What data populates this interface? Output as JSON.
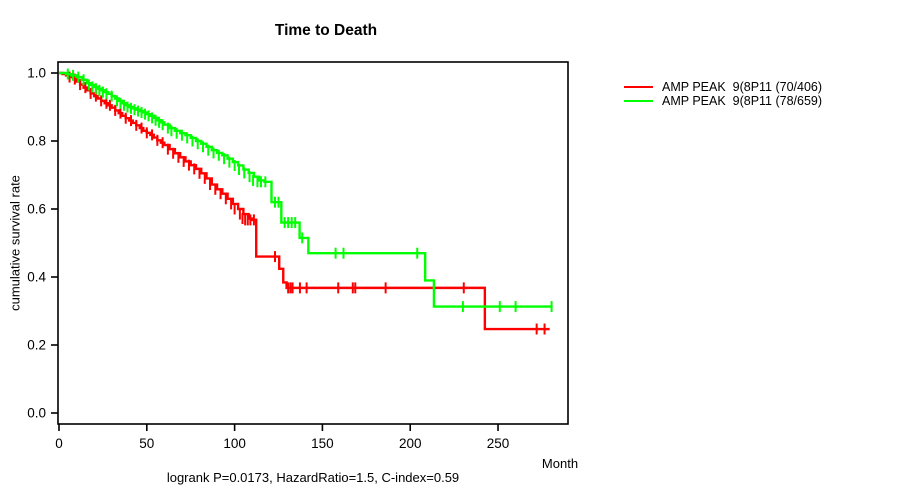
{
  "figure": {
    "title": "Time to Death",
    "x_axis_title": "Month",
    "y_axis_title": "cumulative survival rate",
    "annotation": "logrank P=0.0173, HazardRatio=1.5, C-index=0.59"
  },
  "chart_data": {
    "type": "line",
    "subtype": "kaplan-meier-step-curves",
    "title": "Time to Death",
    "xlabel": "Month",
    "ylabel": "cumulative survival rate",
    "xlim": [
      0,
      290
    ],
    "ylim": [
      0,
      1.0
    ],
    "xticks": [
      0,
      50,
      100,
      150,
      200,
      250
    ],
    "yticks": [
      0.0,
      0.2,
      0.4,
      0.6,
      0.8,
      1.0
    ],
    "grid": false,
    "legend_position": "outside-right",
    "annotation": "logrank P=0.0173, HazardRatio=1.5, C-index=0.59",
    "series": [
      {
        "name": "AMP PEAK  9(8P11 (70/406)",
        "events_over_n": "70/406",
        "color": "#ff0000",
        "steps": [
          [
            0,
            1.0
          ],
          [
            2,
            0.997
          ],
          [
            4,
            0.993
          ],
          [
            6,
            0.988
          ],
          [
            8,
            0.982
          ],
          [
            10,
            0.975
          ],
          [
            12,
            0.966
          ],
          [
            14,
            0.957
          ],
          [
            16,
            0.949
          ],
          [
            18,
            0.94
          ],
          [
            20,
            0.932
          ],
          [
            22,
            0.925
          ],
          [
            24,
            0.918
          ],
          [
            26,
            0.911
          ],
          [
            28,
            0.905
          ],
          [
            30,
            0.898
          ],
          [
            32,
            0.89
          ],
          [
            34,
            0.882
          ],
          [
            36,
            0.874
          ],
          [
            38,
            0.867
          ],
          [
            40,
            0.86
          ],
          [
            42,
            0.853
          ],
          [
            44,
            0.846
          ],
          [
            46,
            0.838
          ],
          [
            48,
            0.83
          ],
          [
            50,
            0.824
          ],
          [
            52,
            0.818
          ],
          [
            54,
            0.81
          ],
          [
            56,
            0.802
          ],
          [
            58,
            0.795
          ],
          [
            60,
            0.788
          ],
          [
            63,
            0.776
          ],
          [
            66,
            0.764
          ],
          [
            69,
            0.752
          ],
          [
            72,
            0.74
          ],
          [
            75,
            0.729
          ],
          [
            78,
            0.718
          ],
          [
            81,
            0.705
          ],
          [
            84,
            0.69
          ],
          [
            87,
            0.672
          ],
          [
            90,
            0.658
          ],
          [
            93,
            0.645
          ],
          [
            96,
            0.63
          ],
          [
            99,
            0.615
          ],
          [
            102,
            0.6
          ],
          [
            105,
            0.585
          ],
          [
            108,
            0.572
          ],
          [
            110,
            0.568
          ],
          [
            112.3,
            0.46
          ],
          [
            125.4,
            0.424
          ],
          [
            127.7,
            0.384
          ],
          [
            129.6,
            0.368
          ],
          [
            242.5,
            0.247
          ],
          [
            279.4,
            0.247
          ]
        ],
        "censors": [
          [
            6,
            0.988
          ],
          [
            9,
            0.982
          ],
          [
            12,
            0.966
          ],
          [
            15,
            0.957
          ],
          [
            18,
            0.94
          ],
          [
            21,
            0.932
          ],
          [
            24,
            0.918
          ],
          [
            27,
            0.911
          ],
          [
            29,
            0.905
          ],
          [
            32,
            0.89
          ],
          [
            35,
            0.882
          ],
          [
            38,
            0.867
          ],
          [
            41,
            0.86
          ],
          [
            44,
            0.846
          ],
          [
            47,
            0.838
          ],
          [
            50,
            0.824
          ],
          [
            53,
            0.818
          ],
          [
            56,
            0.802
          ],
          [
            59,
            0.795
          ],
          [
            62,
            0.776
          ],
          [
            65,
            0.764
          ],
          [
            68,
            0.752
          ],
          [
            71,
            0.74
          ],
          [
            74,
            0.729
          ],
          [
            77,
            0.718
          ],
          [
            80,
            0.705
          ],
          [
            83,
            0.69
          ],
          [
            86,
            0.672
          ],
          [
            89,
            0.658
          ],
          [
            92,
            0.645
          ],
          [
            95,
            0.63
          ],
          [
            98,
            0.615
          ],
          [
            100,
            0.6
          ],
          [
            103,
            0.585
          ],
          [
            104.5,
            0.572
          ],
          [
            106,
            0.568
          ],
          [
            107.5,
            0.568
          ],
          [
            109,
            0.568
          ],
          [
            111,
            0.568
          ],
          [
            123,
            0.46
          ],
          [
            130.5,
            0.368
          ],
          [
            131.8,
            0.368
          ],
          [
            133,
            0.368
          ],
          [
            137.2,
            0.368
          ],
          [
            141,
            0.368
          ],
          [
            159,
            0.368
          ],
          [
            167.3,
            0.368
          ],
          [
            168.7,
            0.368
          ],
          [
            186,
            0.368
          ],
          [
            230.5,
            0.368
          ],
          [
            272,
            0.247
          ],
          [
            276.5,
            0.247
          ]
        ]
      },
      {
        "name": "AMP PEAK  9(8P11 (78/659)",
        "events_over_n": "78/659",
        "color": "#00ff00",
        "steps": [
          [
            0,
            1.0
          ],
          [
            4,
            0.997
          ],
          [
            7,
            0.993
          ],
          [
            10,
            0.988
          ],
          [
            13,
            0.98
          ],
          [
            16,
            0.97
          ],
          [
            18,
            0.965
          ],
          [
            20,
            0.959
          ],
          [
            22,
            0.954
          ],
          [
            24,
            0.949
          ],
          [
            26,
            0.944
          ],
          [
            28,
            0.939
          ],
          [
            30,
            0.932
          ],
          [
            32,
            0.925
          ],
          [
            34,
            0.918
          ],
          [
            36,
            0.911
          ],
          [
            38,
            0.905
          ],
          [
            40,
            0.9
          ],
          [
            42,
            0.896
          ],
          [
            44,
            0.892
          ],
          [
            46,
            0.888
          ],
          [
            48,
            0.884
          ],
          [
            50,
            0.879
          ],
          [
            52,
            0.874
          ],
          [
            54,
            0.868
          ],
          [
            56,
            0.861
          ],
          [
            58,
            0.855
          ],
          [
            60,
            0.848
          ],
          [
            63,
            0.838
          ],
          [
            66,
            0.83
          ],
          [
            69,
            0.823
          ],
          [
            72,
            0.817
          ],
          [
            75,
            0.809
          ],
          [
            78,
            0.8
          ],
          [
            81,
            0.792
          ],
          [
            84,
            0.783
          ],
          [
            87,
            0.773
          ],
          [
            90,
            0.765
          ],
          [
            93,
            0.758
          ],
          [
            96,
            0.748
          ],
          [
            99,
            0.738
          ],
          [
            102,
            0.728
          ],
          [
            105,
            0.716
          ],
          [
            108,
            0.706
          ],
          [
            111,
            0.695
          ],
          [
            114,
            0.684
          ],
          [
            117,
            0.68
          ],
          [
            121,
            0.62
          ],
          [
            126.6,
            0.56
          ],
          [
            137,
            0.515
          ],
          [
            142,
            0.47
          ],
          [
            208.5,
            0.39
          ],
          [
            213.5,
            0.313
          ],
          [
            280.5,
            0.313
          ]
        ],
        "censors": [
          [
            5,
            0.997
          ],
          [
            8,
            0.993
          ],
          [
            11,
            0.988
          ],
          [
            14,
            0.98
          ],
          [
            17,
            0.965
          ],
          [
            19,
            0.959
          ],
          [
            21,
            0.954
          ],
          [
            23,
            0.949
          ],
          [
            25,
            0.944
          ],
          [
            27,
            0.939
          ],
          [
            30,
            0.932
          ],
          [
            33,
            0.918
          ],
          [
            35,
            0.911
          ],
          [
            37,
            0.905
          ],
          [
            39,
            0.9
          ],
          [
            41,
            0.896
          ],
          [
            43,
            0.892
          ],
          [
            45,
            0.888
          ],
          [
            47,
            0.884
          ],
          [
            49,
            0.879
          ],
          [
            51,
            0.874
          ],
          [
            53,
            0.868
          ],
          [
            55,
            0.861
          ],
          [
            57,
            0.855
          ],
          [
            59,
            0.848
          ],
          [
            62,
            0.838
          ],
          [
            64,
            0.83
          ],
          [
            67,
            0.823
          ],
          [
            70,
            0.817
          ],
          [
            73,
            0.809
          ],
          [
            76,
            0.8
          ],
          [
            79,
            0.792
          ],
          [
            82,
            0.783
          ],
          [
            85,
            0.773
          ],
          [
            88,
            0.765
          ],
          [
            91,
            0.758
          ],
          [
            94,
            0.748
          ],
          [
            97,
            0.738
          ],
          [
            100,
            0.728
          ],
          [
            102.5,
            0.716
          ],
          [
            105.5,
            0.706
          ],
          [
            108.5,
            0.695
          ],
          [
            110.5,
            0.684
          ],
          [
            113,
            0.68
          ],
          [
            115,
            0.68
          ],
          [
            117.5,
            0.68
          ],
          [
            123,
            0.62
          ],
          [
            125,
            0.62
          ],
          [
            128.5,
            0.56
          ],
          [
            130.5,
            0.56
          ],
          [
            132.5,
            0.56
          ],
          [
            134.5,
            0.56
          ],
          [
            138.5,
            0.515
          ],
          [
            157.5,
            0.47
          ],
          [
            162,
            0.47
          ],
          [
            204,
            0.47
          ],
          [
            230,
            0.313
          ],
          [
            251,
            0.313
          ],
          [
            260,
            0.313
          ],
          [
            280.5,
            0.313
          ]
        ]
      }
    ]
  }
}
